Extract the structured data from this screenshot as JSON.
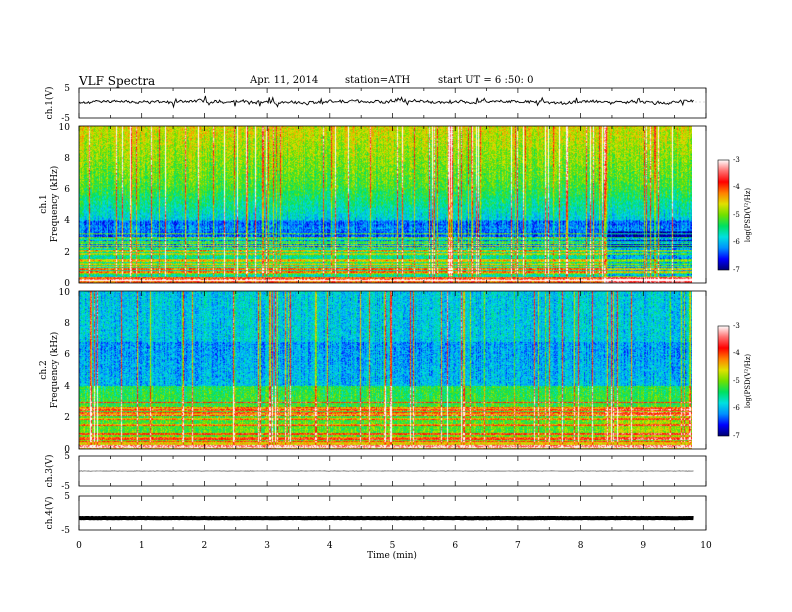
{
  "header": {
    "title": "VLF  Spectra",
    "date": "Apr. 11, 2014",
    "station": "station=ATH",
    "start": "start  UT  =   6  :50: 0"
  },
  "chart_data": [
    {
      "type": "line",
      "id": "ch1-waveform",
      "ylabel": "ch.1(V)",
      "yticks": [
        "5",
        "-5"
      ],
      "ylim": [
        -5,
        5
      ],
      "x_range_min": [
        0,
        9.8
      ],
      "description_level": 0.3,
      "style": "noisy"
    },
    {
      "type": "heatmap",
      "id": "ch1-spectrogram",
      "ylabel_channel": "ch.1",
      "ylabel": "Frequency  (kHz)",
      "yticks": [
        "0",
        "2",
        "4",
        "6",
        "8",
        "10"
      ],
      "ylim": [
        0,
        10
      ],
      "x_range_min": [
        0,
        9.8
      ],
      "colorbar": {
        "label": "log(PSD(V²/Hz)",
        "ticks": [
          "-3",
          "-4",
          "-5",
          "-6",
          "-7"
        ],
        "range": [
          -7,
          -3
        ],
        "colors": [
          "#000070",
          "#0000ff",
          "#0090ff",
          "#00e0e0",
          "#00e060",
          "#70e000",
          "#e0e000",
          "#ff8000",
          "#ff0000",
          "#ff7070",
          "#ffffff"
        ]
      }
    },
    {
      "type": "heatmap",
      "id": "ch2-spectrogram",
      "ylabel_channel": "ch.2",
      "ylabel": "Frequency  (kHz)",
      "yticks": [
        "0",
        "2",
        "4",
        "6",
        "8",
        "10"
      ],
      "ylim": [
        0,
        10
      ],
      "x_range_min": [
        0,
        9.8
      ],
      "colorbar": {
        "label": "log(PSD(V²/Hz)",
        "ticks": [
          "-3",
          "-4",
          "-5",
          "-6",
          "-7"
        ],
        "range": [
          -7,
          -3
        ],
        "colors": [
          "#000070",
          "#0000ff",
          "#0090ff",
          "#00e0e0",
          "#00e060",
          "#70e000",
          "#e0e000",
          "#ff8000",
          "#ff0000",
          "#ff7070",
          "#ffffff"
        ]
      }
    },
    {
      "type": "line",
      "id": "ch3-waveform",
      "ylabel": "ch.3(V)",
      "yticks": [
        "5",
        "-5"
      ],
      "ylim": [
        -5,
        5
      ],
      "x_range_min": [
        0,
        9.8
      ],
      "level": 0.0,
      "style": "flat"
    },
    {
      "type": "line",
      "id": "ch4-waveform",
      "ylabel": "ch.4(V)",
      "yticks": [
        "5",
        "-5"
      ],
      "ylim": [
        -5,
        5
      ],
      "x_range_min": [
        0,
        9.8
      ],
      "level": -1.5,
      "style": "thick"
    }
  ],
  "x_axis": {
    "xlabel": "Time  (min)",
    "xticks": [
      "0",
      "1",
      "2",
      "3",
      "4",
      "5",
      "6",
      "7",
      "8",
      "9",
      "10"
    ],
    "xlim": [
      0,
      10
    ]
  }
}
